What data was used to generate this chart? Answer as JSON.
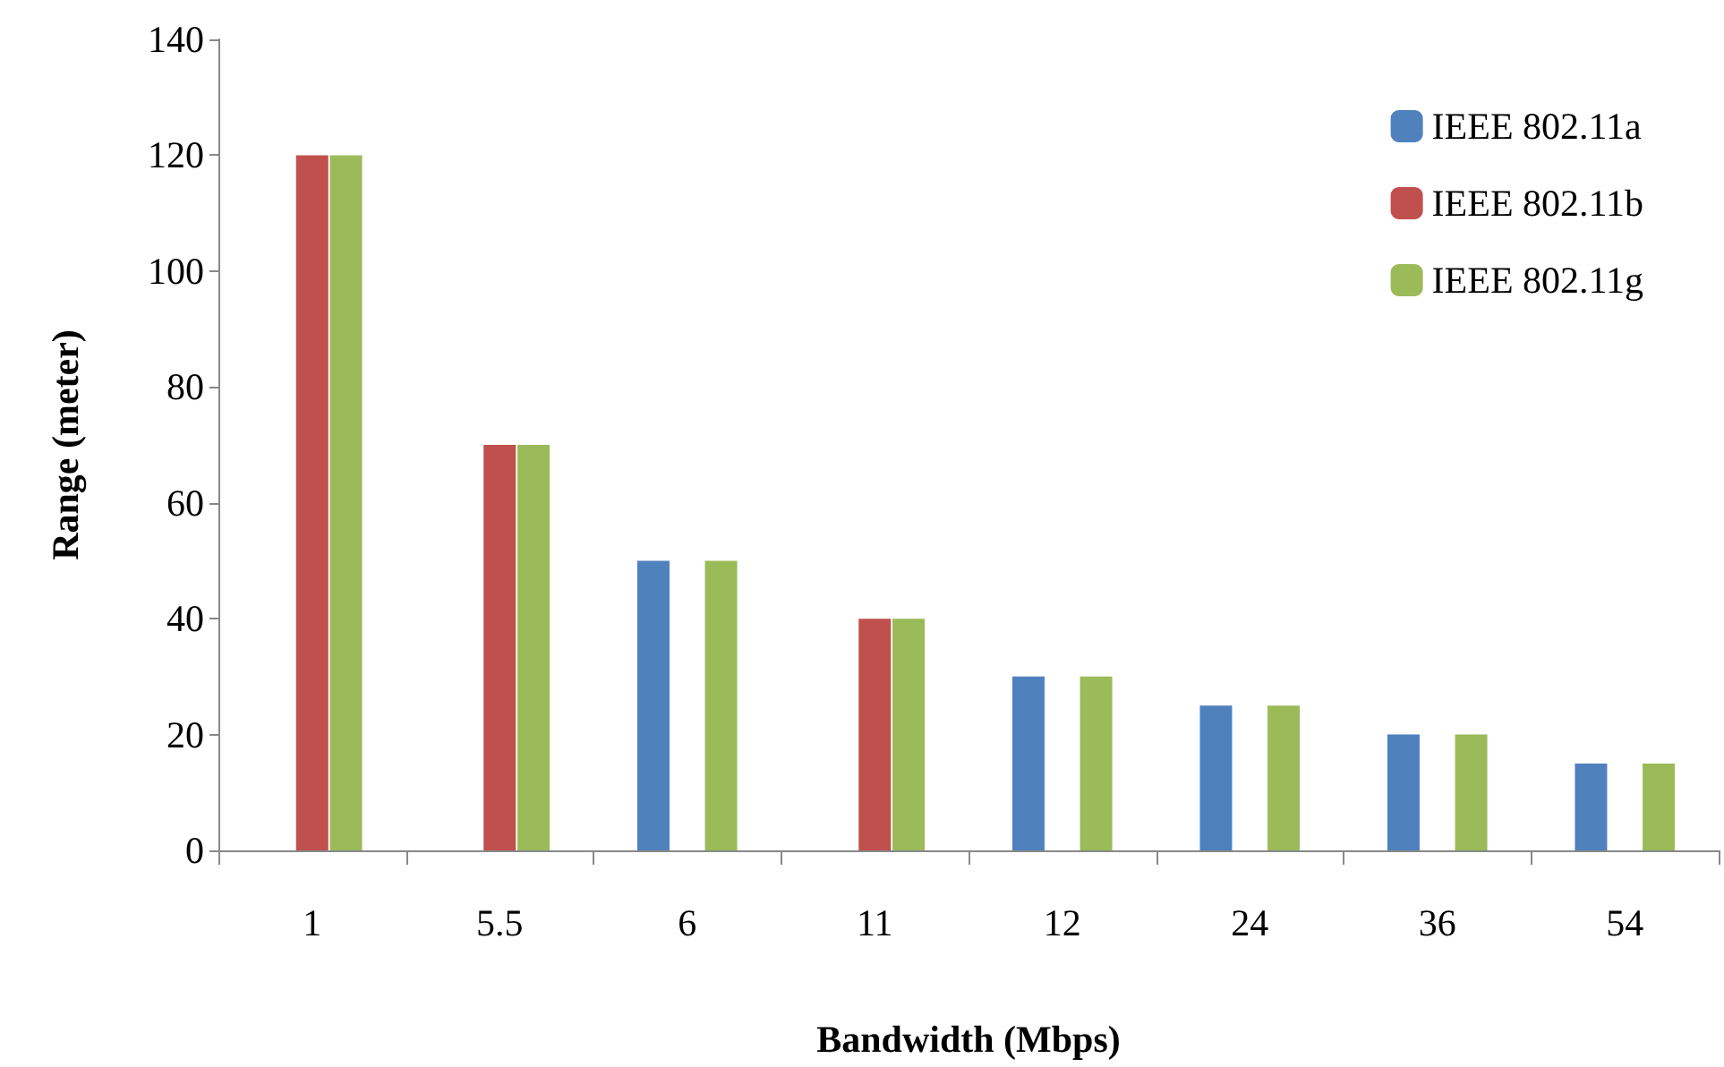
{
  "chart_data": {
    "type": "bar",
    "xlabel": "Bandwidth (Mbps)",
    "ylabel": "Range (meter)",
    "categories": [
      "1",
      "5.5",
      "6",
      "11",
      "12",
      "24",
      "36",
      "54"
    ],
    "series": [
      {
        "name": "IEEE 802.11a",
        "color": "#4f81bd",
        "values": [
          null,
          null,
          50,
          null,
          30,
          25,
          20,
          15
        ]
      },
      {
        "name": "IEEE 802.11b",
        "color": "#c0504d",
        "values": [
          120,
          70,
          null,
          40,
          null,
          null,
          null,
          null
        ]
      },
      {
        "name": "IEEE 802.11g",
        "color": "#9bbb59",
        "values": [
          120,
          70,
          50,
          40,
          30,
          25,
          20,
          15
        ]
      }
    ],
    "ylim": [
      0,
      140
    ],
    "yticks": [
      0,
      20,
      40,
      60,
      80,
      100,
      120,
      140
    ],
    "grid": false,
    "legend": "top right"
  }
}
